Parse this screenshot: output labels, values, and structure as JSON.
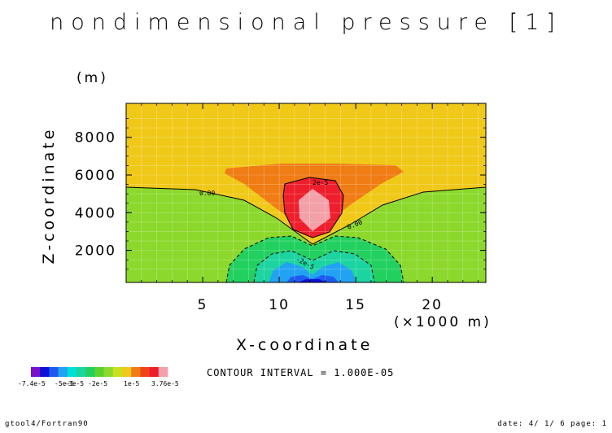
{
  "chart_data": {
    "type": "heatmap",
    "title": "nondimensional pressure [1]",
    "xlabel": "X-coordinate",
    "x_unit": "(×1000 m)",
    "ylabel": "Z-coordinate",
    "y_unit": "(m)",
    "xlim": [
      0,
      23.5
    ],
    "ylim": [
      300,
      9800
    ],
    "x_ticks": [
      5,
      10,
      15,
      20
    ],
    "y_ticks": [
      2000,
      4000,
      6000,
      8000
    ],
    "contour_interval_text": "CONTOUR INTERVAL = 1.000E-05",
    "contour_labels": [
      "0.00",
      "0.00",
      "2e-5",
      "-2e-5"
    ],
    "colorbar": {
      "min_label": "-7.4e-5",
      "max_label": "3.76e-5",
      "tick_labels": [
        "-5e-5",
        "-3e-5",
        "-2e-5",
        "1e-5"
      ],
      "colors": [
        "#7a10c8",
        "#1010d8",
        "#1e5cf0",
        "#22a2f2",
        "#00e0d4",
        "#1cd4a0",
        "#22d060",
        "#5ad22c",
        "#8cd82c",
        "#c8e020",
        "#f0c818",
        "#f07c14",
        "#f24418",
        "#ee1e2c",
        "#f3a0a8"
      ]
    },
    "grid": true
  },
  "footer": {
    "left": "gtool4/Fortran90",
    "right": "date: 4/ 1/ 6 page: 1"
  }
}
